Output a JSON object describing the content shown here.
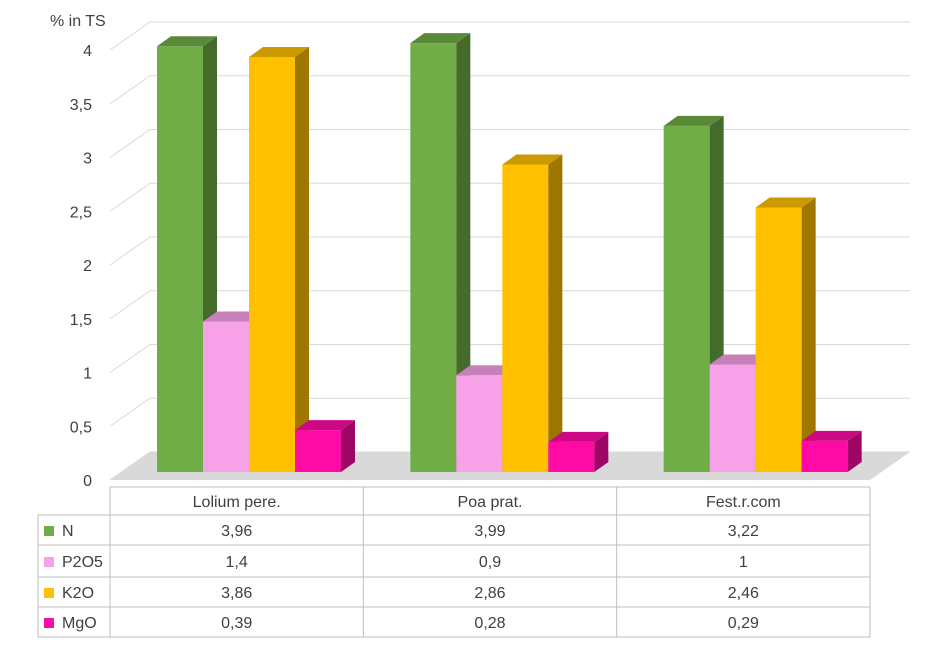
{
  "chart_data": {
    "type": "bar3d",
    "y_axis_label": "% in TS",
    "categories": [
      "Lolium pere.",
      "Poa prat.",
      "Fest.r.com"
    ],
    "series": [
      {
        "name": "N",
        "color": "#70ad47",
        "values": [
          3.96,
          3.99,
          3.22
        ],
        "value_labels": [
          "3,96",
          "3,99",
          "3,22"
        ]
      },
      {
        "name": "P2O5",
        "color": "#f7a1e8",
        "values": [
          1.4,
          0.9,
          1
        ],
        "value_labels": [
          "1,4",
          "0,9",
          "1"
        ]
      },
      {
        "name": "K2O",
        "color": "#ffc000",
        "values": [
          3.86,
          2.86,
          2.46
        ],
        "value_labels": [
          "3,86",
          "2,86",
          "2,46"
        ]
      },
      {
        "name": "MgO",
        "color": "#ff0aa5",
        "values": [
          0.39,
          0.28,
          0.29
        ],
        "value_labels": [
          "0,39",
          "0,28",
          "0,29"
        ]
      }
    ],
    "ylim": [
      0,
      4
    ],
    "yticks": [
      0,
      {
        "value": 0.5,
        "label": "0,5"
      },
      1,
      {
        "value": 1.5,
        "label": "1,5"
      },
      2,
      {
        "value": 2.5,
        "label": "2,5"
      },
      3,
      {
        "value": 3.5,
        "label": "3,5"
      },
      4
    ],
    "grid": true,
    "data_table": true
  }
}
